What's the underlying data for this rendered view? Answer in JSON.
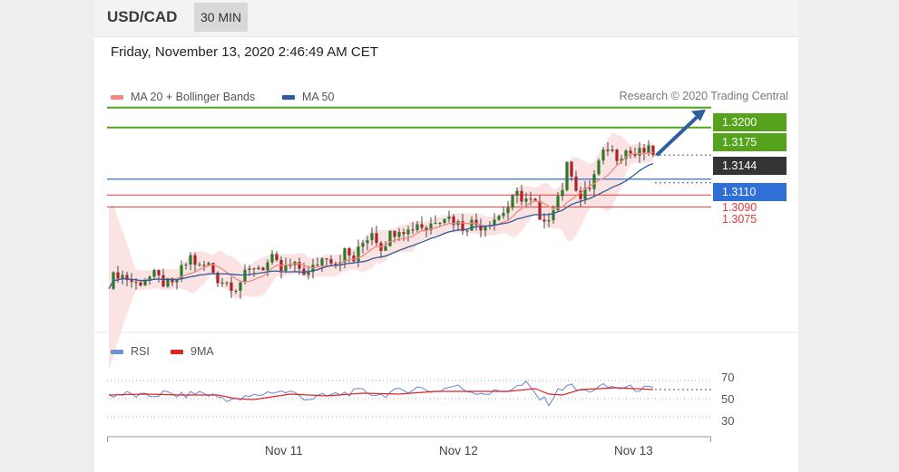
{
  "header": {
    "pair": "USD/CAD",
    "timeframe": "30 MIN"
  },
  "date": "Friday, November 13, 2020 2:46:49 AM CET",
  "credit": "Research © 2020 Trading Central",
  "legend": {
    "ma20": {
      "label": "MA 20 + Bollinger Bands",
      "color": "#f08a82"
    },
    "ma50": {
      "label": "MA 50",
      "color": "#2f5b9a"
    }
  },
  "rsi_legend": {
    "rsi": {
      "label": "RSI",
      "color": "#6f8fd6"
    },
    "ma9": {
      "label": "9MA",
      "color": "#e02525"
    }
  },
  "levels": {
    "r2": {
      "value": "1.3200",
      "color": "#55a31c"
    },
    "r1": {
      "value": "1.3175",
      "color": "#55a31c"
    },
    "last": {
      "value": "1.3144",
      "color": "#333333"
    },
    "pivot": {
      "value": "1.3110",
      "color": "#2f6fd6"
    },
    "s1": {
      "value": "1.3090",
      "color": "#e23b3b"
    },
    "s2": {
      "value": "1.3075",
      "color": "#e23b3b"
    }
  },
  "rsi_axis": [
    "70",
    "50",
    "30"
  ],
  "x_labels": [
    "Nov 11",
    "Nov 12",
    "Nov 13"
  ],
  "chart_data": {
    "type": "line",
    "title": "USD/CAD",
    "x": [
      "Nov 11",
      "Nov 12",
      "Nov 13"
    ],
    "series": [
      {
        "name": "MA 20 + Bollinger Bands",
        "values": [
          1.2985,
          1.3035,
          1.3125
        ]
      },
      {
        "name": "MA 50",
        "values": [
          1.2975,
          1.303,
          1.3105
        ]
      }
    ],
    "price_path": [
      [
        0,
        1.298
      ],
      [
        10,
        1.2992
      ],
      [
        20,
        1.2985
      ],
      [
        30,
        1.2978
      ],
      [
        40,
        1.2985
      ],
      [
        50,
        1.2988
      ],
      [
        60,
        1.298
      ],
      [
        70,
        1.2975
      ],
      [
        80,
        1.2995
      ],
      [
        90,
        1.3012
      ],
      [
        100,
        1.2998
      ],
      [
        110,
        1.3002
      ],
      [
        120,
        1.2985
      ],
      [
        130,
        1.298
      ],
      [
        140,
        1.2975
      ],
      [
        150,
        1.2988
      ],
      [
        160,
        1.3
      ],
      [
        170,
        1.3
      ],
      [
        180,
        1.3008
      ],
      [
        190,
        1.2995
      ],
      [
        200,
        1.3
      ],
      [
        210,
        1.2998
      ],
      [
        220,
        1.299
      ],
      [
        230,
        1.3005
      ],
      [
        240,
        1.3015
      ],
      [
        250,
        1.3005
      ],
      [
        260,
        1.3018
      ],
      [
        270,
        1.3008
      ],
      [
        280,
        1.303
      ],
      [
        290,
        1.3045
      ],
      [
        300,
        1.3025
      ],
      [
        310,
        1.304
      ],
      [
        320,
        1.305
      ],
      [
        330,
        1.3045
      ],
      [
        340,
        1.3055
      ],
      [
        350,
        1.3048
      ],
      [
        360,
        1.306
      ],
      [
        370,
        1.3065
      ],
      [
        380,
        1.3058
      ],
      [
        390,
        1.305
      ],
      [
        400,
        1.3055
      ],
      [
        410,
        1.3052
      ],
      [
        420,
        1.3058
      ],
      [
        430,
        1.3064
      ],
      [
        440,
        1.3075
      ],
      [
        450,
        1.309
      ],
      [
        460,
        1.3085
      ],
      [
        470,
        1.3078
      ],
      [
        475,
        1.3055
      ],
      [
        480,
        1.305
      ],
      [
        490,
        1.3078
      ],
      [
        500,
        1.31
      ],
      [
        507,
        1.3135
      ],
      [
        512,
        1.311
      ],
      [
        520,
        1.3085
      ],
      [
        530,
        1.31
      ],
      [
        540,
        1.313
      ],
      [
        550,
        1.315
      ],
      [
        560,
        1.314
      ],
      [
        570,
        1.3146
      ],
      [
        580,
        1.314
      ],
      [
        590,
        1.3145
      ],
      [
        600,
        1.3144
      ]
    ],
    "forecast_target": 1.32,
    "rsi_path": [
      [
        0,
        54
      ],
      [
        20,
        55
      ],
      [
        40,
        52
      ],
      [
        60,
        56
      ],
      [
        80,
        53
      ],
      [
        100,
        57
      ],
      [
        120,
        52
      ],
      [
        140,
        48
      ],
      [
        160,
        53
      ],
      [
        180,
        58
      ],
      [
        200,
        57
      ],
      [
        220,
        50
      ],
      [
        240,
        53
      ],
      [
        260,
        56
      ],
      [
        280,
        58
      ],
      [
        300,
        54
      ],
      [
        320,
        58
      ],
      [
        340,
        62
      ],
      [
        360,
        58
      ],
      [
        380,
        64
      ],
      [
        400,
        58
      ],
      [
        420,
        56
      ],
      [
        440,
        60
      ],
      [
        460,
        66
      ],
      [
        475,
        50
      ],
      [
        485,
        46
      ],
      [
        495,
        58
      ],
      [
        505,
        66
      ],
      [
        515,
        60
      ],
      [
        525,
        58
      ],
      [
        545,
        63
      ],
      [
        565,
        62
      ],
      [
        585,
        61
      ],
      [
        600,
        60
      ]
    ],
    "ma9_path": [
      [
        0,
        54
      ],
      [
        40,
        55
      ],
      [
        80,
        54
      ],
      [
        120,
        54
      ],
      [
        140,
        50
      ],
      [
        160,
        49
      ],
      [
        200,
        55
      ],
      [
        240,
        53
      ],
      [
        280,
        56
      ],
      [
        320,
        55
      ],
      [
        360,
        58
      ],
      [
        400,
        58
      ],
      [
        440,
        58
      ],
      [
        470,
        61
      ],
      [
        485,
        55
      ],
      [
        500,
        54
      ],
      [
        520,
        60
      ],
      [
        560,
        62
      ],
      [
        600,
        60
      ]
    ],
    "ylim": [
      1.2925,
      1.321
    ],
    "rsi_ylim": [
      20,
      80
    ],
    "grid": false,
    "legend": "top-left"
  }
}
